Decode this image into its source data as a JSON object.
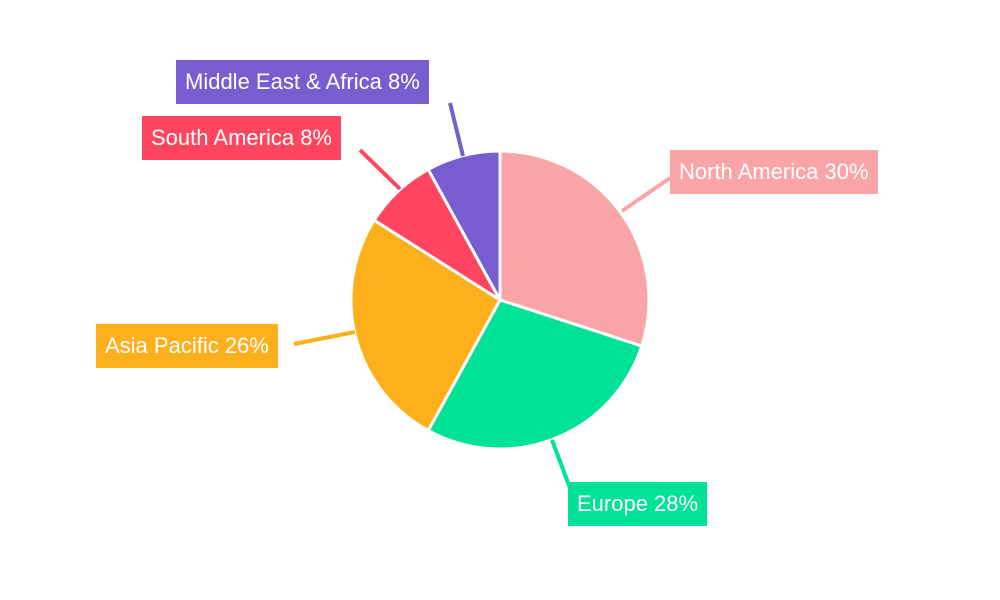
{
  "chart_data": {
    "type": "pie",
    "title": "",
    "start_angle_deg": 0,
    "direction": "clockwise",
    "slices": [
      {
        "label": "North America",
        "value": 30,
        "text": "North America 30%",
        "color": "#F9A5A8"
      },
      {
        "label": "Europe",
        "value": 28,
        "text": "Europe 28%",
        "color": "#00E396"
      },
      {
        "label": "Asia Pacific",
        "value": 26,
        "text": "Asia Pacific 26%",
        "color": "#FDB01C"
      },
      {
        "label": "South America",
        "value": 8,
        "text": "South America 8%",
        "color": "#FF4560"
      },
      {
        "label": "Middle East & Africa",
        "value": 8,
        "text": "Middle East & Africa 8%",
        "color": "#775DD0"
      }
    ],
    "legend": "none",
    "data_labels": "outside with leader lines"
  },
  "labels": {
    "north_america": "North America 30%",
    "europe": "Europe 28%",
    "asia_pacific": "Asia Pacific 26%",
    "south_america": "South America 8%",
    "mea": "Middle East & Africa 8%"
  }
}
